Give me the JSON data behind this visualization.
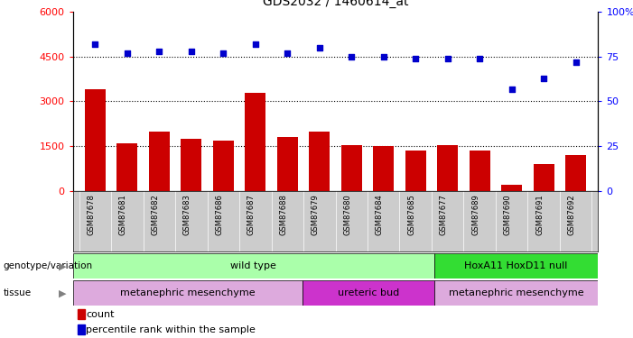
{
  "title": "GDS2032 / 1460614_at",
  "samples": [
    "GSM87678",
    "GSM87681",
    "GSM87682",
    "GSM87683",
    "GSM87686",
    "GSM87687",
    "GSM87688",
    "GSM87679",
    "GSM87680",
    "GSM87684",
    "GSM87685",
    "GSM87677",
    "GSM87689",
    "GSM87690",
    "GSM87691",
    "GSM87692"
  ],
  "counts": [
    3400,
    1600,
    2000,
    1750,
    1700,
    3300,
    1800,
    2000,
    1550,
    1500,
    1350,
    1550,
    1350,
    200,
    900,
    1200
  ],
  "percentiles": [
    82,
    77,
    78,
    78,
    77,
    82,
    77,
    80,
    75,
    75,
    74,
    74,
    74,
    57,
    63,
    72
  ],
  "ylim_left": [
    0,
    6000
  ],
  "ylim_right": [
    0,
    100
  ],
  "yticks_left": [
    0,
    1500,
    3000,
    4500,
    6000
  ],
  "yticks_right": [
    0,
    25,
    50,
    75,
    100
  ],
  "genotype_groups": [
    {
      "label": "wild type",
      "start": 0,
      "end": 11,
      "color": "#AAFFAA"
    },
    {
      "label": "HoxA11 HoxD11 null",
      "start": 11,
      "end": 16,
      "color": "#33DD33"
    }
  ],
  "tissue_groups": [
    {
      "label": "metanephric mesenchyme",
      "start": 0,
      "end": 7,
      "color": "#DDAADD"
    },
    {
      "label": "ureteric bud",
      "start": 7,
      "end": 11,
      "color": "#CC33CC"
    },
    {
      "label": "metanephric mesenchyme",
      "start": 11,
      "end": 16,
      "color": "#DDAADD"
    }
  ],
  "bar_color": "#CC0000",
  "scatter_color": "#0000CC",
  "sample_bg_color": "#CCCCCC",
  "background_color": "#ffffff",
  "legend_count_color": "#CC0000",
  "legend_pct_color": "#0000CC",
  "dotted_yticks": [
    1500,
    3000,
    4500
  ]
}
